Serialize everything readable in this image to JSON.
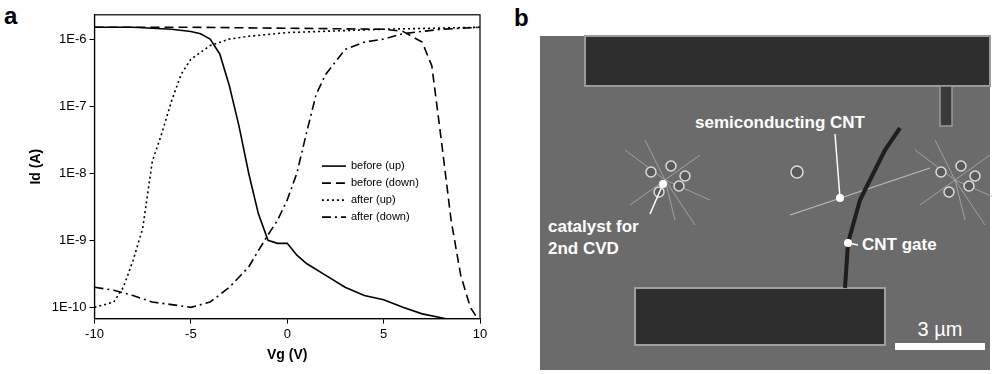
{
  "chart_data": {
    "panel": "a",
    "type": "line",
    "x_label": "Vg (V)",
    "y_label": "Id (A)",
    "log": "y",
    "grid": false,
    "legend": "right",
    "xlim": [
      -10,
      10
    ],
    "xticks": [
      -10,
      -5,
      0,
      5,
      10
    ],
    "ylim": [
      6.8e-11,
      2.3e-06
    ],
    "yticks": [
      {
        "value": 1e-10,
        "label": "1E-10"
      },
      {
        "value": 1e-09,
        "label": "1E-9"
      },
      {
        "value": 1e-08,
        "label": "1E-8"
      },
      {
        "value": 1e-07,
        "label": "1E-7"
      },
      {
        "value": 1e-06,
        "label": "1E-6"
      }
    ],
    "series": [
      {
        "name": "before (up)",
        "color": "#000000",
        "line_style": "solid",
        "x": [
          -10,
          -8,
          -7,
          -6,
          -5,
          -4.5,
          -4,
          -3.5,
          -3,
          -2.5,
          -2,
          -1.5,
          -1,
          -0.5,
          0,
          0.5,
          1,
          2,
          3,
          4,
          5,
          6,
          7,
          8,
          9,
          10
        ],
        "values": [
          1.5e-06,
          1.5e-06,
          1.45e-06,
          1.4e-06,
          1.3e-06,
          1.2e-06,
          1e-06,
          6e-07,
          2e-07,
          5e-08,
          1e-08,
          2.5e-09,
          1e-09,
          9e-10,
          9e-10,
          6e-10,
          4.5e-10,
          3e-10,
          2e-10,
          1.5e-10,
          1.3e-10,
          1e-10,
          8e-11,
          7e-11,
          6e-11,
          6e-11
        ]
      },
      {
        "name": "before (down)",
        "color": "#000000",
        "line_style": "dashed",
        "x": [
          -10,
          -5,
          0,
          5,
          6,
          7,
          7.5,
          8,
          8.5,
          9,
          9.5,
          10
        ],
        "values": [
          1.5e-06,
          1.5e-06,
          1.45e-06,
          1.4e-06,
          1.3e-06,
          9e-07,
          4e-07,
          3e-08,
          2e-09,
          3e-10,
          1e-10,
          6e-11
        ]
      },
      {
        "name": "after (up)",
        "color": "#000000",
        "line_style": "dotted",
        "x": [
          -10,
          -9,
          -8.5,
          -8,
          -7.5,
          -7,
          -6.5,
          -6,
          -5.5,
          -5,
          -4,
          -3,
          -2,
          0,
          5,
          10
        ],
        "values": [
          1e-10,
          1.2e-10,
          2e-10,
          5e-10,
          1.5e-09,
          1.5e-08,
          4e-08,
          1.2e-07,
          3e-07,
          5e-07,
          8e-07,
          1e-06,
          1.1e-06,
          1.25e-06,
          1.4e-06,
          1.5e-06
        ]
      },
      {
        "name": "after (down)",
        "color": "#000000",
        "line_style": "dashdot",
        "x": [
          -10,
          -9,
          -8,
          -7,
          -6,
          -5,
          -4,
          -3,
          -2,
          -1.5,
          -1,
          -0.5,
          0,
          0.5,
          1,
          1.5,
          2,
          3,
          4,
          5,
          6,
          7,
          8,
          10
        ],
        "values": [
          2e-10,
          1.8e-10,
          1.5e-10,
          1.2e-10,
          1.1e-10,
          1e-10,
          1.2e-10,
          2e-10,
          4e-10,
          7e-10,
          1.2e-09,
          2e-09,
          4e-09,
          1e-08,
          4e-08,
          1.5e-07,
          3e-07,
          7e-07,
          9e-07,
          1e-06,
          1.2e-06,
          1.3e-06,
          1.4e-06,
          1.5e-06
        ]
      }
    ]
  },
  "image": {
    "panel": "b",
    "labels": [
      "semiconducting CNT",
      "catalyst for 2nd CVD",
      "CNT gate"
    ],
    "scale_bar": "3 µm"
  }
}
